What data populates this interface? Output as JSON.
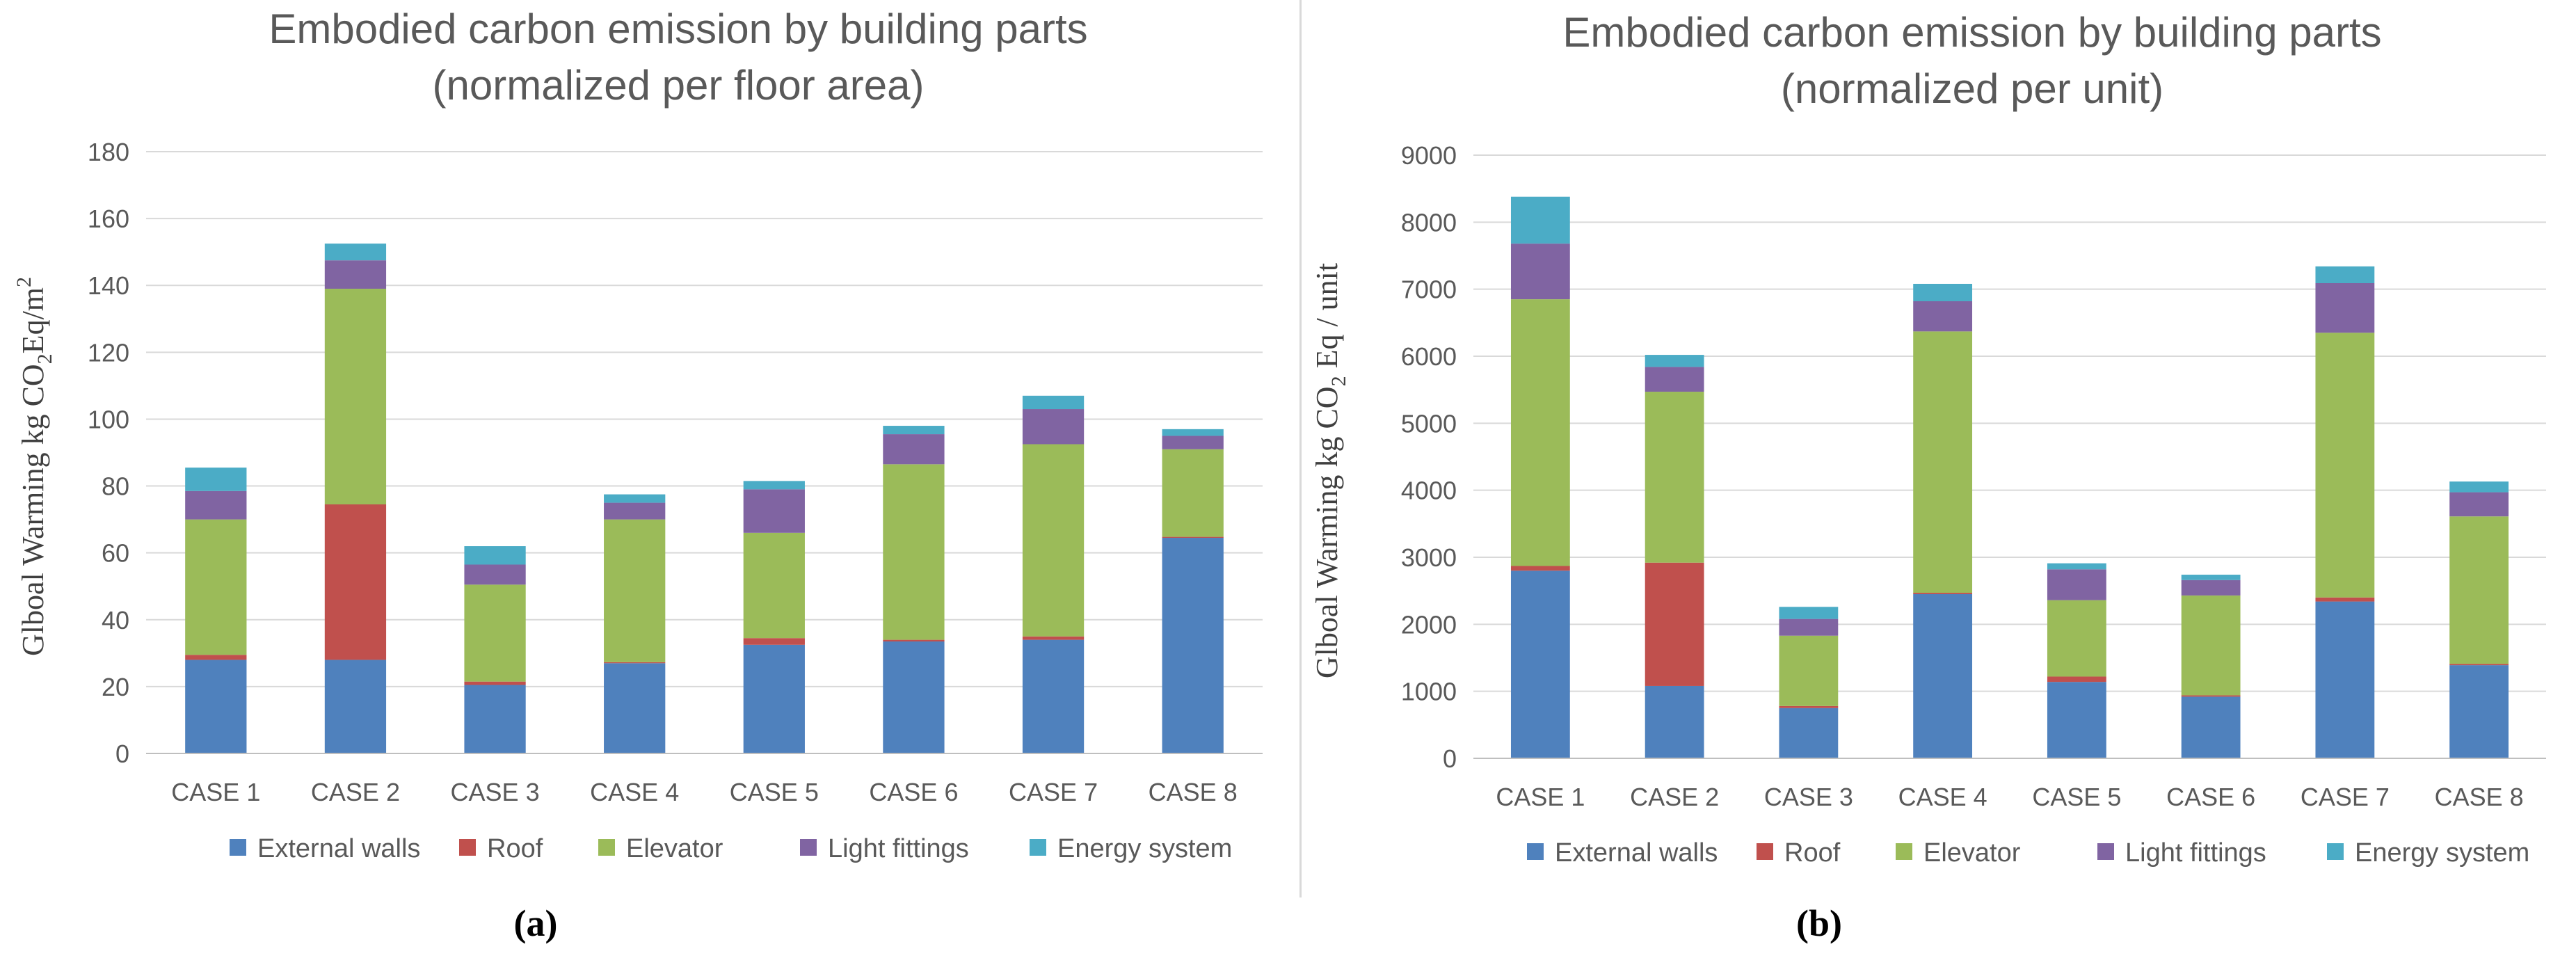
{
  "chart_data": [
    {
      "type": "bar",
      "stacked": true,
      "panel_label": "(a)",
      "title": [
        "Embodied carbon emission by building parts",
        "(normalized per floor area)"
      ],
      "ylabel": {
        "prefix": "Glboal Warming kg CO",
        "sub": "2",
        "mid": "Eq/m",
        "sup": "2"
      },
      "xlabel": "",
      "ylim": [
        0,
        180
      ],
      "yticks": [
        0,
        20,
        40,
        60,
        80,
        100,
        120,
        140,
        160,
        180
      ],
      "ytick_labels": [
        "0",
        "20",
        "40",
        "60",
        "80",
        "100",
        "120",
        "140",
        "160",
        "180"
      ],
      "grid": true,
      "legend_position": "bottom",
      "categories": [
        "CASE 1",
        "CASE 2",
        "CASE 3",
        "CASE 4",
        "CASE 5",
        "CASE 6",
        "CASE 7",
        "CASE 8"
      ],
      "series": [
        {
          "name": "External walls",
          "color": "#4f81bd",
          "values": [
            28,
            28,
            20.5,
            27,
            32.5,
            33.5,
            34,
            64.5
          ]
        },
        {
          "name": "Roof",
          "color": "#c0504d",
          "values": [
            1.5,
            46.5,
            1,
            0.3,
            2,
            0.5,
            1,
            0.3
          ]
        },
        {
          "name": "Elevator",
          "color": "#9bbb59",
          "values": [
            40.5,
            64.5,
            29,
            42.7,
            31.5,
            52.5,
            57.5,
            26.2
          ]
        },
        {
          "name": "Light fittings",
          "color": "#8064a2",
          "values": [
            8.5,
            8.5,
            6,
            5,
            13,
            9,
            10.5,
            4
          ]
        },
        {
          "name": "Energy system",
          "color": "#4bacc6",
          "values": [
            7,
            5,
            5.5,
            2.5,
            2.5,
            2.5,
            4,
            2
          ]
        }
      ]
    },
    {
      "type": "bar",
      "stacked": true,
      "panel_label": "(b)",
      "title": [
        "Embodied carbon emission by building parts",
        "(normalized per unit)"
      ],
      "ylabel": {
        "prefix": "Glboal Warming kg CO",
        "sub": "2",
        "mid": " Eq / unit",
        "sup": ""
      },
      "xlabel": "",
      "ylim": [
        0,
        9000
      ],
      "yticks": [
        0,
        1000,
        2000,
        3000,
        4000,
        5000,
        6000,
        7000,
        8000,
        9000
      ],
      "ytick_labels": [
        "0",
        "1000",
        "2000",
        "3000",
        "4000",
        "5000",
        "6000",
        "7000",
        "8000",
        "9000"
      ],
      "grid": true,
      "legend_position": "bottom",
      "categories": [
        "CASE 1",
        "CASE 2",
        "CASE 3",
        "CASE 4",
        "CASE 5",
        "CASE 6",
        "CASE 7",
        "CASE 8"
      ],
      "series": [
        {
          "name": "External walls",
          "color": "#4f81bd",
          "values": [
            2800,
            1080,
            750,
            2450,
            1140,
            920,
            2340,
            1390
          ]
        },
        {
          "name": "Roof",
          "color": "#c0504d",
          "values": [
            70,
            1840,
            30,
            20,
            80,
            20,
            60,
            20
          ]
        },
        {
          "name": "Elevator",
          "color": "#9bbb59",
          "values": [
            3980,
            2550,
            1050,
            3900,
            1140,
            1490,
            3950,
            2200
          ]
        },
        {
          "name": "Light fittings",
          "color": "#8064a2",
          "values": [
            830,
            370,
            250,
            450,
            460,
            230,
            740,
            360
          ]
        },
        {
          "name": "Energy system",
          "color": "#4bacc6",
          "values": [
            700,
            180,
            180,
            260,
            90,
            80,
            250,
            160
          ]
        }
      ]
    }
  ]
}
